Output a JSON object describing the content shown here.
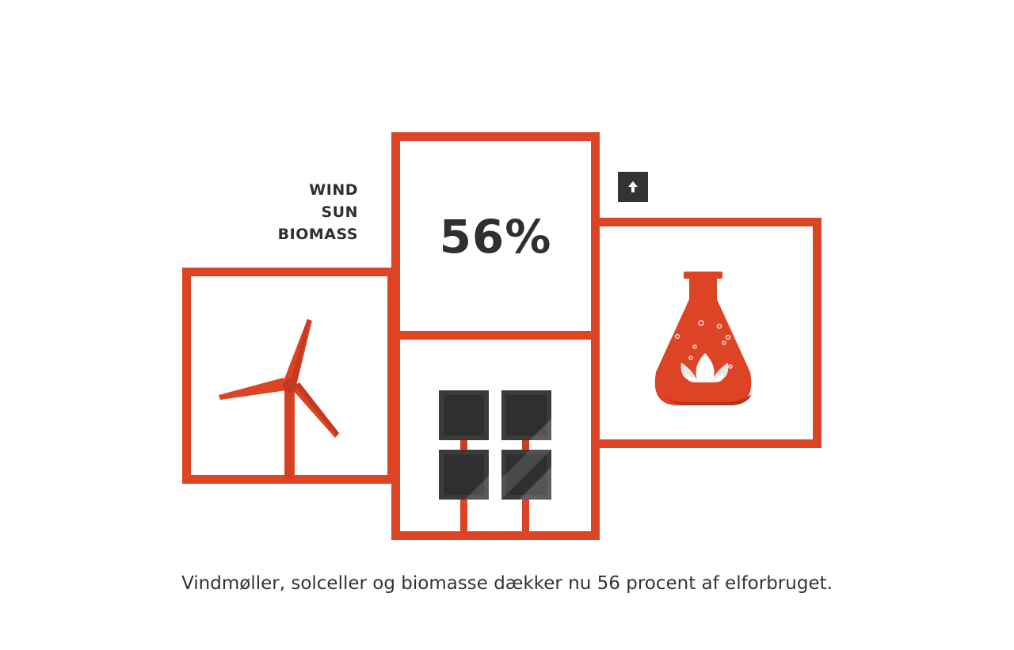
{
  "labels": {
    "line1": "WIND",
    "line2": "SUN",
    "line3": "BIOMASS"
  },
  "stat": {
    "value": "56%"
  },
  "caption": "Vindmøller, solceller og biomasse dækker nu 56 procent af elforbruget.",
  "icons": {
    "scroll_up": "arrow-up-icon",
    "wind": "wind-turbine-icon",
    "sun": "solar-panels-icon",
    "biomass": "flask-leaves-icon"
  },
  "colors": {
    "accent": "#dd4426",
    "dark": "#333333",
    "panel": "#3b3b3b"
  }
}
